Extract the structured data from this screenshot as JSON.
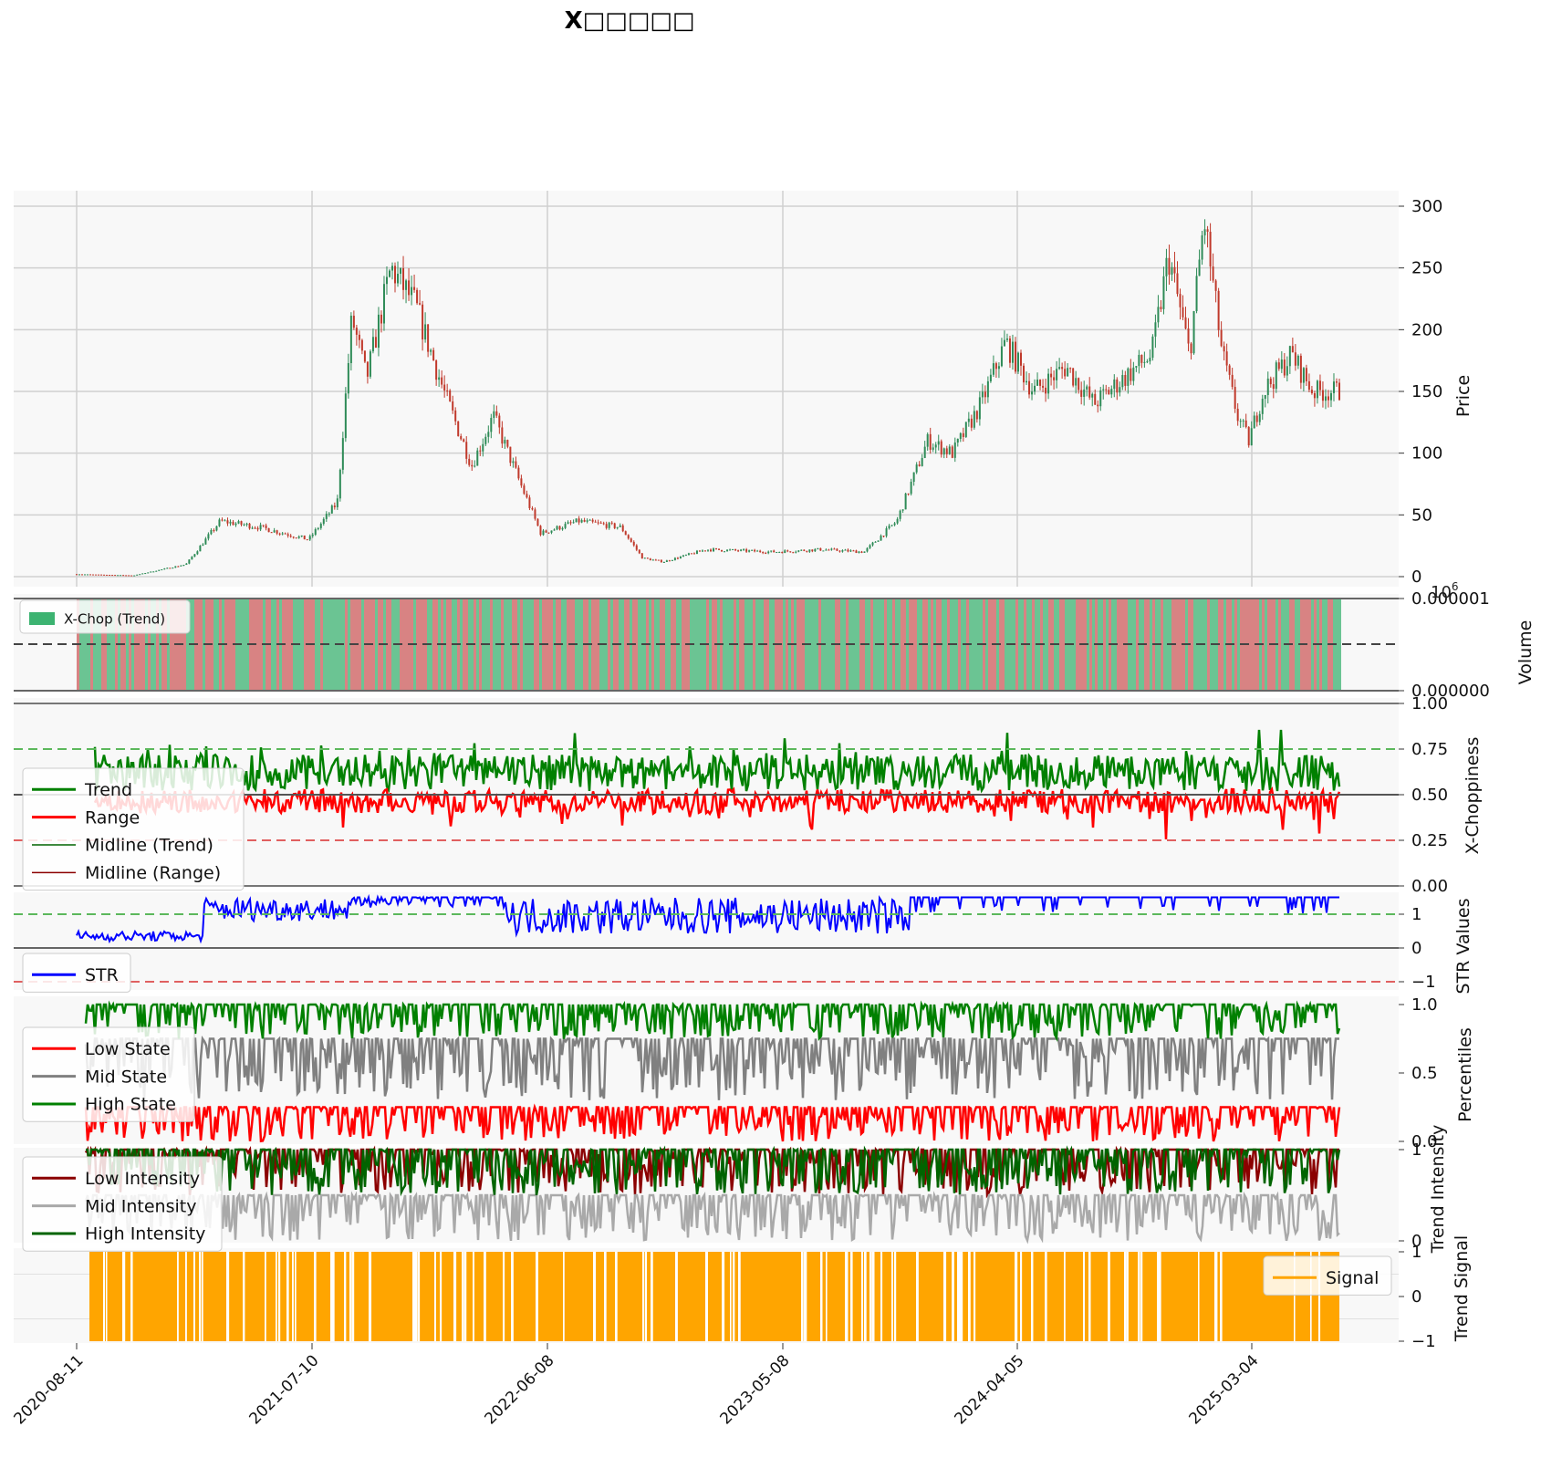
{
  "figure": {
    "title": "X□□□□□"
  },
  "x_axis": {
    "tick_labels": [
      "2020-08-11",
      "2021-07-10",
      "2022-06-08",
      "2023-05-08",
      "2024-04-05",
      "2025-03-04"
    ]
  },
  "chart_data": [
    {
      "panel": "price",
      "type": "candlestick",
      "ylabel": "Price",
      "ylim": [
        -10,
        310
      ],
      "yticks": [
        "0",
        "50",
        "100",
        "150",
        "200",
        "250",
        "300"
      ],
      "grid": true,
      "x": [
        "2020-08-11",
        "2020-11-01",
        "2021-01-15",
        "2021-03-05",
        "2021-05-01",
        "2021-07-10",
        "2021-08-20",
        "2021-09-10",
        "2021-10-01",
        "2021-11-05",
        "2021-12-10",
        "2022-01-20",
        "2022-03-01",
        "2022-04-01",
        "2022-05-10",
        "2022-06-08",
        "2022-08-01",
        "2022-10-01",
        "2022-11-01",
        "2022-12-01",
        "2023-02-01",
        "2023-05-08",
        "2023-07-15",
        "2023-09-15",
        "2023-11-01",
        "2023-12-15",
        "2024-01-20",
        "2024-03-01",
        "2024-04-05",
        "2024-05-15",
        "2024-07-01",
        "2024-08-10",
        "2024-09-20",
        "2024-11-01",
        "2024-11-25",
        "2024-12-25",
        "2025-01-15",
        "2025-02-10",
        "2025-03-04",
        "2025-03-20",
        "2025-04-10",
        "2025-05-20",
        "2025-06-20",
        "2025-07-20"
      ],
      "close": [
        2,
        1,
        10,
        45,
        40,
        30,
        60,
        210,
        160,
        250,
        220,
        150,
        90,
        130,
        75,
        35,
        45,
        40,
        15,
        12,
        22,
        20,
        22,
        20,
        45,
        110,
        100,
        140,
        190,
        150,
        170,
        140,
        160,
        180,
        260,
        180,
        290,
        180,
        130,
        110,
        150,
        180,
        150,
        150
      ]
    },
    {
      "panel": "volume",
      "type": "bar",
      "ylabel": "Volume",
      "multiplier": "10^6",
      "yticks": [
        "0.000000",
        "0.000001"
      ],
      "legend": [
        "X-Chop (Trend)"
      ],
      "legend_position": "upper-left",
      "colors": {
        "trend": "#3cb371",
        "range": "#cd5c5c"
      }
    },
    {
      "panel": "x_choppiness",
      "type": "line",
      "ylabel": "X-Choppiness",
      "ylim": [
        0,
        1
      ],
      "yticks": [
        "0.00",
        "0.25",
        "0.50",
        "0.75",
        "1.00"
      ],
      "hlines": [
        0.25,
        0.5,
        0.75,
        1.0
      ],
      "series": [
        {
          "name": "Trend",
          "color": "#008000",
          "range": [
            0.5,
            0.88
          ]
        },
        {
          "name": "Range",
          "color": "#ff0000",
          "range": [
            0.2,
            0.55
          ]
        },
        {
          "name": "Midline (Trend)",
          "color": "#006400"
        },
        {
          "name": "Midline (Range)",
          "color": "#8b0000"
        }
      ],
      "legend_position": "center-left"
    },
    {
      "panel": "str",
      "type": "line",
      "ylabel": "STR Values",
      "ylim": [
        -1.5,
        1.5
      ],
      "yticks": [
        "−1",
        "0",
        "1"
      ],
      "hlines": [
        -1,
        0,
        1
      ],
      "series": [
        {
          "name": "STR",
          "color": "#0000ff"
        }
      ],
      "legend_position": "lower-left"
    },
    {
      "panel": "percentiles",
      "type": "line",
      "ylabel": "Percentiles",
      "yticks": [
        "0.0",
        "0.5",
        "1.0"
      ],
      "series": [
        {
          "name": "Low State",
          "color": "#ff0000",
          "range": [
            0.0,
            0.25
          ]
        },
        {
          "name": "Mid State",
          "color": "#808080",
          "range": [
            0.3,
            0.75
          ]
        },
        {
          "name": "High State",
          "color": "#008000",
          "range": [
            0.75,
            1.0
          ]
        }
      ],
      "legend_position": "upper-left"
    },
    {
      "panel": "trend_intensity",
      "type": "line",
      "ylabel": "Trend Intensity",
      "yticks": [
        "0",
        "1"
      ],
      "series": [
        {
          "name": "Low Intensity",
          "color": "#8b0000"
        },
        {
          "name": "Mid Intensity",
          "color": "#a9a9a9"
        },
        {
          "name": "High Intensity",
          "color": "#006400"
        }
      ],
      "legend_position": "upper-left"
    },
    {
      "panel": "trend_signal",
      "type": "step",
      "ylabel": "Trend Signal",
      "ylim": [
        -1,
        1
      ],
      "yticks": [
        "−1",
        "0",
        "1"
      ],
      "series": [
        {
          "name": "Signal",
          "color": "#ffa500"
        }
      ],
      "legend_position": "upper-right"
    }
  ]
}
